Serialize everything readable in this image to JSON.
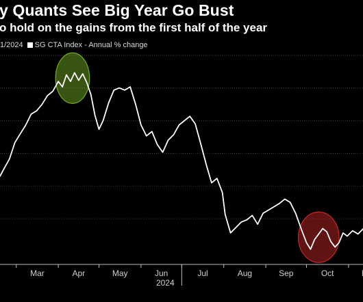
{
  "header": {
    "title": "y Quants See Big Year Go Bust",
    "subtitle": "o hold on the gains from the first half of the year"
  },
  "legend": {
    "date_fragment": "1/2024",
    "series_label": "SG CTA Index - Annual % change"
  },
  "chart_data": {
    "type": "line",
    "x_tick_labels": [
      "Mar",
      "Apr",
      "May",
      "Jun",
      "Jul",
      "Aug",
      "Sep",
      "Oct",
      "Nov"
    ],
    "year_label": "2024",
    "grid": true,
    "series": [
      {
        "color": "#ffffff",
        "points": [
          [
            "2024-02-18",
            0.9
          ],
          [
            "2024-02-21",
            1.6
          ],
          [
            "2024-02-25",
            2.5
          ],
          [
            "2024-02-29",
            4.0
          ],
          [
            "2024-03-04",
            4.8
          ],
          [
            "2024-03-08",
            5.6
          ],
          [
            "2024-03-12",
            6.6
          ],
          [
            "2024-03-16",
            6.9
          ],
          [
            "2024-03-20",
            7.5
          ],
          [
            "2024-03-24",
            8.3
          ],
          [
            "2024-03-28",
            8.7
          ],
          [
            "2024-04-01",
            9.6
          ],
          [
            "2024-04-04",
            9.1
          ],
          [
            "2024-04-07",
            10.2
          ],
          [
            "2024-04-10",
            9.6
          ],
          [
            "2024-04-13",
            10.4
          ],
          [
            "2024-04-16",
            9.7
          ],
          [
            "2024-04-19",
            10.3
          ],
          [
            "2024-04-22",
            9.5
          ],
          [
            "2024-04-25",
            8.4
          ],
          [
            "2024-04-28",
            6.5
          ],
          [
            "2024-05-01",
            5.2
          ],
          [
            "2024-05-04",
            6.0
          ],
          [
            "2024-05-08",
            7.6
          ],
          [
            "2024-05-12",
            8.8
          ],
          [
            "2024-05-16",
            9.0
          ],
          [
            "2024-05-20",
            8.8
          ],
          [
            "2024-05-24",
            9.1
          ],
          [
            "2024-05-28",
            7.5
          ],
          [
            "2024-06-01",
            5.6
          ],
          [
            "2024-06-05",
            4.6
          ],
          [
            "2024-06-09",
            5.0
          ],
          [
            "2024-06-13",
            3.8
          ],
          [
            "2024-06-17",
            3.1
          ],
          [
            "2024-06-21",
            4.2
          ],
          [
            "2024-06-25",
            4.7
          ],
          [
            "2024-06-29",
            5.6
          ],
          [
            "2024-07-03",
            6.0
          ],
          [
            "2024-07-07",
            6.4
          ],
          [
            "2024-07-11",
            5.7
          ],
          [
            "2024-07-15",
            3.9
          ],
          [
            "2024-07-19",
            2.0
          ],
          [
            "2024-07-23",
            0.3
          ],
          [
            "2024-07-27",
            0.7
          ],
          [
            "2024-07-31",
            -0.6
          ],
          [
            "2024-08-02",
            -2.6
          ],
          [
            "2024-08-06",
            -4.3
          ],
          [
            "2024-08-10",
            -3.8
          ],
          [
            "2024-08-14",
            -3.3
          ],
          [
            "2024-08-18",
            -3.1
          ],
          [
            "2024-08-22",
            -2.7
          ],
          [
            "2024-08-26",
            -3.5
          ],
          [
            "2024-08-30",
            -2.5
          ],
          [
            "2024-09-03",
            -2.2
          ],
          [
            "2024-09-07",
            -1.9
          ],
          [
            "2024-09-11",
            -1.6
          ],
          [
            "2024-09-15",
            -1.2
          ],
          [
            "2024-09-19",
            -1.5
          ],
          [
            "2024-09-23",
            -2.5
          ],
          [
            "2024-09-27",
            -3.9
          ],
          [
            "2024-10-01",
            -5.2
          ],
          [
            "2024-10-04",
            -5.8
          ],
          [
            "2024-10-07",
            -4.9
          ],
          [
            "2024-10-10",
            -4.4
          ],
          [
            "2024-10-13",
            -3.9
          ],
          [
            "2024-10-16",
            -4.2
          ],
          [
            "2024-10-19",
            -5.1
          ],
          [
            "2024-10-22",
            -5.6
          ],
          [
            "2024-10-25",
            -5.2
          ],
          [
            "2024-10-28",
            -4.3
          ],
          [
            "2024-10-31",
            -4.6
          ],
          [
            "2024-11-04",
            -4.1
          ],
          [
            "2024-11-08",
            -4.4
          ],
          [
            "2024-11-12",
            -3.9
          ],
          [
            "2024-11-16",
            -4.3
          ],
          [
            "2024-11-19",
            -4.5
          ]
        ]
      }
    ],
    "highlights": [
      {
        "color": "#7dbb2a",
        "from": "2024-04-01",
        "to": "2024-04-22",
        "center_value": 9.9
      },
      {
        "color": "#d42a2a",
        "from": "2024-09-27",
        "to": "2024-10-23",
        "center_value": -4.7
      }
    ]
  }
}
